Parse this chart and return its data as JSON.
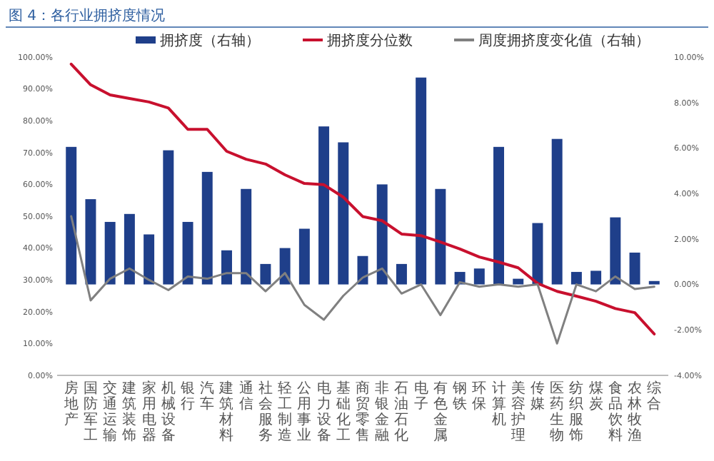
{
  "chart_data": {
    "type": "bar",
    "title": "图 4：各行业拥挤度情况",
    "categories": [
      "房地产",
      "国防军工",
      "交通运输",
      "建筑装饰",
      "家用电器",
      "机械设备",
      "银行",
      "汽车",
      "建筑材料",
      "通信",
      "社会服务",
      "轻工制造",
      "公用事业",
      "电力设备",
      "基础化工",
      "商贸零售",
      "非银金融",
      "石油石化",
      "电子",
      "有色金属",
      "钢铁",
      "环保",
      "计算机",
      "美容护理",
      "传媒",
      "医药生物",
      "纺织服饰",
      "煤炭",
      "食品饮料",
      "农林牧渔",
      "综合"
    ],
    "series": [
      {
        "name": "拥挤度（右轴）",
        "axis": "y2",
        "color": "#1f3f8a",
        "values": [
          6.05,
          3.75,
          2.75,
          3.1,
          2.2,
          5.9,
          2.75,
          4.95,
          1.5,
          4.2,
          0.9,
          1.6,
          2.45,
          6.95,
          6.25,
          1.25,
          4.4,
          0.9,
          9.1,
          4.2,
          0.55,
          0.7,
          6.05,
          0.25,
          2.7,
          6.4,
          0.55,
          0.6,
          2.95,
          1.4,
          0.15
        ]
      },
      {
        "name": "拥挤度分位数",
        "type": "line",
        "color": "#c8102e",
        "values": [
          97.8,
          91.3,
          88.1,
          87,
          85.9,
          84,
          77.3,
          77.3,
          70.4,
          67.9,
          66.4,
          63,
          60.3,
          59.9,
          56,
          49.9,
          48.6,
          44.4,
          43.9,
          41.9,
          39.7,
          37.2,
          35.6,
          33.8,
          28.9,
          26.4,
          24.9,
          23.3,
          21,
          19.7,
          13
        ]
      },
      {
        "name": "周度拥挤度变化值（右轴）",
        "type": "line",
        "axis": "y2",
        "color": "#808080",
        "values": [
          3.0,
          -0.7,
          0.25,
          0.7,
          0.2,
          -0.25,
          0.35,
          0.25,
          0.5,
          0.5,
          -0.3,
          0.5,
          -0.9,
          -1.55,
          -0.5,
          0.3,
          0.7,
          -0.4,
          0,
          -1.35,
          0.1,
          -0.1,
          0,
          -0.1,
          0,
          -2.6,
          0,
          -0.3,
          0.35,
          -0.2,
          -0.1
        ]
      }
    ],
    "ylim": [
      0,
      100
    ],
    "yticks": [
      {
        "value": 0,
        "label": "0.00%"
      },
      {
        "value": 10,
        "label": "10.00%"
      },
      {
        "value": 20,
        "label": "20.00%"
      },
      {
        "value": 30,
        "label": "30.00%"
      },
      {
        "value": 40,
        "label": "40.00%"
      },
      {
        "value": 50,
        "label": "50.00%"
      },
      {
        "value": 60,
        "label": "60.00%"
      },
      {
        "value": 70,
        "label": "70.00%"
      },
      {
        "value": 80,
        "label": "80.00%"
      },
      {
        "value": 90,
        "label": "90.00%"
      },
      {
        "value": 100,
        "label": "100.00%"
      }
    ],
    "y2lim": [
      -4,
      10
    ],
    "y2ticks": [
      {
        "value": -4,
        "label": "-4.00%"
      },
      {
        "value": -2,
        "label": "-2.00%"
      },
      {
        "value": 0,
        "label": "0.00%"
      },
      {
        "value": 2,
        "label": "2.00%"
      },
      {
        "value": 4,
        "label": "4.00%"
      },
      {
        "value": 6,
        "label": "6.00%"
      },
      {
        "value": 8,
        "label": "8.00%"
      },
      {
        "value": 10,
        "label": "10.00%"
      }
    ],
    "grid": false,
    "legend": "top"
  }
}
